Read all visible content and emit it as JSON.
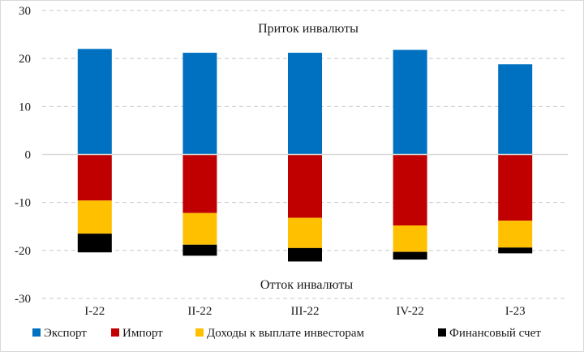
{
  "chart_data": {
    "type": "bar",
    "stacked": true,
    "categories": [
      "I-22",
      "II-22",
      "III-22",
      "IV-22",
      "I-23"
    ],
    "series": [
      {
        "name": "Экспорт",
        "color": "#0070C0",
        "values": [
          22.0,
          21.2,
          21.2,
          21.8,
          18.8
        ]
      },
      {
        "name": "Импорт",
        "color": "#C00000",
        "values": [
          -9.6,
          -12.2,
          -13.2,
          -14.8,
          -13.8
        ]
      },
      {
        "name": "Доходы к выплате инвесторам",
        "color": "#FFC000",
        "values": [
          -6.9,
          -6.6,
          -6.3,
          -5.5,
          -5.6
        ]
      },
      {
        "name": "Финансовый счет",
        "color": "#000000",
        "values": [
          -3.9,
          -2.3,
          -2.8,
          -1.6,
          -1.2
        ]
      }
    ],
    "ylim": [
      -30,
      30
    ],
    "yticks": [
      -30,
      -20,
      -10,
      0,
      10,
      20,
      30
    ],
    "grid": true,
    "legend_position": "bottom",
    "annotations": [
      "Приток инвалюты",
      "Отток инвалюты"
    ]
  }
}
